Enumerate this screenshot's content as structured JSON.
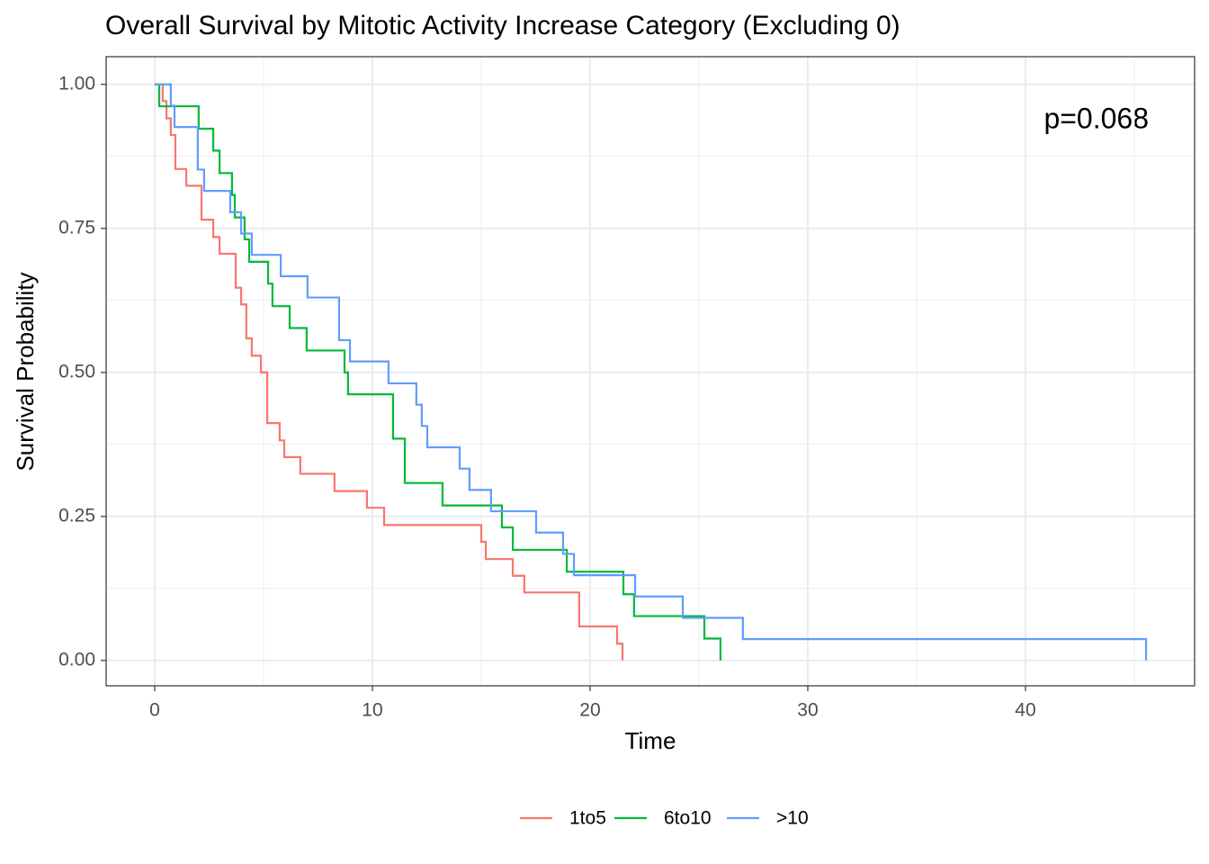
{
  "chart_data": {
    "type": "step",
    "title": "Overall Survival by Mitotic Activity Increase Category (Excluding 0)",
    "x_label": "Time",
    "y_label": "Survival Probability",
    "annotation": "p=0.068",
    "xlim": [
      -2.23,
      47.77
    ],
    "ylim": [
      -0.044,
      1.048
    ],
    "xticks": [
      0,
      10,
      20,
      30,
      40
    ],
    "yticks": [
      {
        "value": 0,
        "label": "0.00"
      },
      {
        "value": 0.25,
        "label": "0.25"
      },
      {
        "value": 0.5,
        "label": "0.50"
      },
      {
        "value": 0.75,
        "label": "0.75"
      },
      {
        "value": 1,
        "label": "1.00"
      }
    ],
    "grid": true,
    "legend": "bottom",
    "series": [
      {
        "name": "1to5",
        "color": "#F8766D",
        "x": [
          0,
          0.37,
          0.54,
          0.74,
          0.95,
          1.45,
          2.15,
          2.69,
          2.98,
          3.72,
          3.97,
          4.21,
          4.46,
          4.88,
          5.17,
          5.74,
          5.95,
          6.69,
          8.26,
          9.75,
          10.54,
          15.0,
          15.21,
          16.45,
          16.98,
          19.5,
          21.24,
          21.49
        ],
        "values": [
          1,
          0.971,
          0.941,
          0.912,
          0.853,
          0.824,
          0.765,
          0.735,
          0.706,
          0.647,
          0.618,
          0.559,
          0.529,
          0.5,
          0.412,
          0.382,
          0.353,
          0.324,
          0.294,
          0.265,
          0.235,
          0.206,
          0.176,
          0.147,
          0.118,
          0.059,
          0.029,
          0
        ]
      },
      {
        "name": "6to10",
        "color": "#00BA38",
        "x": [
          0,
          0.21,
          2.02,
          2.69,
          2.98,
          3.55,
          3.68,
          4.13,
          4.34,
          5.21,
          5.41,
          6.2,
          6.98,
          8.72,
          8.88,
          10.95,
          11.49,
          13.22,
          15.95,
          16.45,
          18.93,
          21.53,
          22.02,
          25.25,
          25.99
        ],
        "values": [
          1,
          0.962,
          0.923,
          0.885,
          0.846,
          0.808,
          0.769,
          0.731,
          0.692,
          0.654,
          0.615,
          0.577,
          0.538,
          0.5,
          0.462,
          0.385,
          0.308,
          0.269,
          0.231,
          0.192,
          0.154,
          0.115,
          0.077,
          0.038,
          0
        ]
      },
      {
        "name": ">10",
        "color": "#619CFF",
        "x": [
          0,
          0.74,
          0.91,
          1.98,
          2.27,
          3.47,
          3.97,
          4.46,
          5.79,
          7.02,
          8.47,
          8.97,
          10.74,
          12.02,
          12.27,
          12.52,
          14.01,
          14.46,
          15.45,
          17.52,
          18.76,
          19.26,
          22.07,
          24.26,
          27.02,
          45.54
        ],
        "values": [
          1,
          0.963,
          0.926,
          0.852,
          0.815,
          0.778,
          0.741,
          0.704,
          0.667,
          0.63,
          0.556,
          0.519,
          0.481,
          0.444,
          0.407,
          0.37,
          0.333,
          0.296,
          0.259,
          0.222,
          0.185,
          0.148,
          0.111,
          0.074,
          0.037,
          0
        ]
      }
    ]
  }
}
